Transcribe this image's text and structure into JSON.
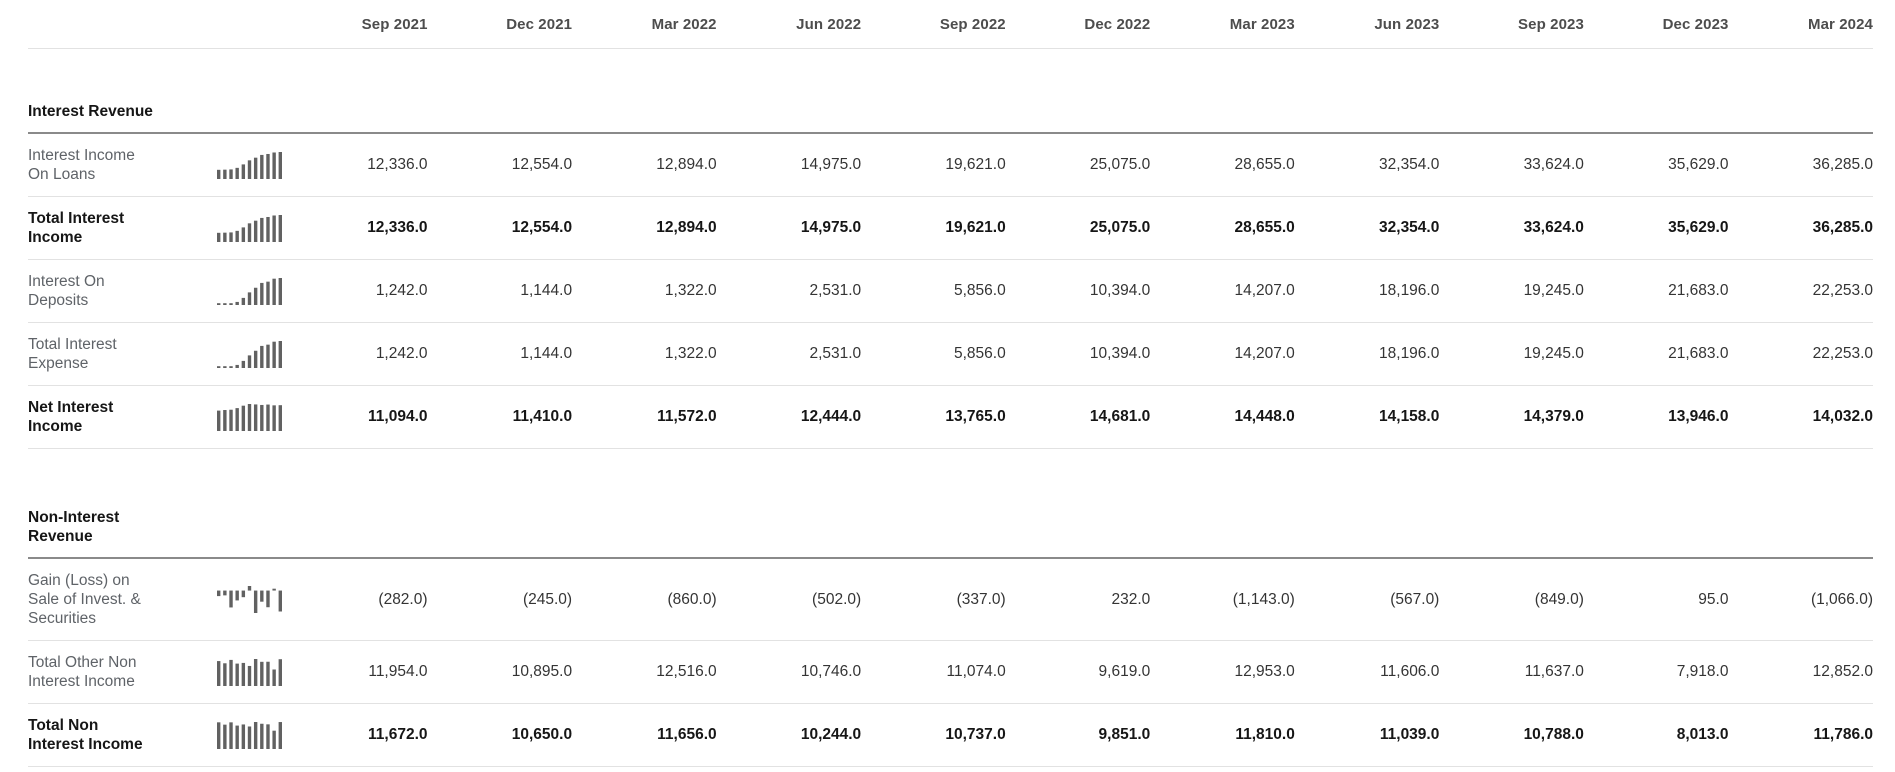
{
  "columns": [
    "Sep 2021",
    "Dec 2021",
    "Mar 2022",
    "Jun 2022",
    "Sep 2022",
    "Dec 2022",
    "Mar 2023",
    "Jun 2023",
    "Sep 2023",
    "Dec 2023",
    "Mar 2024"
  ],
  "sparkline_bar_color": "#616161",
  "sections": [
    {
      "title_lines": [
        "Interest Revenue"
      ],
      "rows": [
        {
          "label_lines": [
            "Interest Income",
            "On Loans"
          ],
          "bold": false,
          "values": [
            "12,336.0",
            "12,554.0",
            "12,894.0",
            "14,975.0",
            "19,621.0",
            "25,075.0",
            "28,655.0",
            "32,354.0",
            "33,624.0",
            "35,629.0",
            "36,285.0"
          ],
          "sparkline": [
            12336,
            12554,
            12894,
            14975,
            19621,
            25075,
            28655,
            32354,
            33624,
            35629,
            36285
          ]
        },
        {
          "label_lines": [
            "Total Interest",
            "Income"
          ],
          "bold": true,
          "values": [
            "12,336.0",
            "12,554.0",
            "12,894.0",
            "14,975.0",
            "19,621.0",
            "25,075.0",
            "28,655.0",
            "32,354.0",
            "33,624.0",
            "35,629.0",
            "36,285.0"
          ],
          "sparkline": [
            12336,
            12554,
            12894,
            14975,
            19621,
            25075,
            28655,
            32354,
            33624,
            35629,
            36285
          ]
        },
        {
          "label_lines": [
            "Interest On",
            "Deposits"
          ],
          "bold": false,
          "values": [
            "1,242.0",
            "1,144.0",
            "1,322.0",
            "2,531.0",
            "5,856.0",
            "10,394.0",
            "14,207.0",
            "18,196.0",
            "19,245.0",
            "21,683.0",
            "22,253.0"
          ],
          "sparkline": [
            1242,
            1144,
            1322,
            2531,
            5856,
            10394,
            14207,
            18196,
            19245,
            21683,
            22253
          ]
        },
        {
          "label_lines": [
            "Total Interest",
            "Expense"
          ],
          "bold": false,
          "values": [
            "1,242.0",
            "1,144.0",
            "1,322.0",
            "2,531.0",
            "5,856.0",
            "10,394.0",
            "14,207.0",
            "18,196.0",
            "19,245.0",
            "21,683.0",
            "22,253.0"
          ],
          "sparkline": [
            1242,
            1144,
            1322,
            2531,
            5856,
            10394,
            14207,
            18196,
            19245,
            21683,
            22253
          ]
        },
        {
          "label_lines": [
            "Net Interest",
            "Income"
          ],
          "bold": true,
          "values": [
            "11,094.0",
            "11,410.0",
            "11,572.0",
            "12,444.0",
            "13,765.0",
            "14,681.0",
            "14,448.0",
            "14,158.0",
            "14,379.0",
            "13,946.0",
            "14,032.0"
          ],
          "sparkline": [
            11094,
            11410,
            11572,
            12444,
            13765,
            14681,
            14448,
            14158,
            14379,
            13946,
            14032
          ]
        }
      ]
    },
    {
      "title_lines": [
        "Non-Interest",
        "Revenue"
      ],
      "rows": [
        {
          "label_lines": [
            "Gain (Loss) on",
            "Sale of Invest. &",
            "Securities"
          ],
          "bold": false,
          "values": [
            "(282.0)",
            "(245.0)",
            "(860.0)",
            "(502.0)",
            "(337.0)",
            "232.0",
            "(1,143.0)",
            "(567.0)",
            "(849.0)",
            "95.0",
            "(1,066.0)"
          ],
          "sparkline": [
            -282,
            -245,
            -860,
            -502,
            -337,
            232,
            -1143,
            -567,
            -849,
            95,
            -1066
          ]
        },
        {
          "label_lines": [
            "Total Other Non",
            "Interest Income"
          ],
          "bold": false,
          "values": [
            "11,954.0",
            "10,895.0",
            "12,516.0",
            "10,746.0",
            "11,074.0",
            "9,619.0",
            "12,953.0",
            "11,606.0",
            "11,637.0",
            "7,918.0",
            "12,852.0"
          ],
          "sparkline": [
            11954,
            10895,
            12516,
            10746,
            11074,
            9619,
            12953,
            11606,
            11637,
            7918,
            12852
          ]
        },
        {
          "label_lines": [
            "Total Non",
            "Interest Income"
          ],
          "bold": true,
          "values": [
            "11,672.0",
            "10,650.0",
            "11,656.0",
            "10,244.0",
            "10,737.0",
            "9,851.0",
            "11,810.0",
            "11,039.0",
            "10,788.0",
            "8,013.0",
            "11,786.0"
          ],
          "sparkline": [
            11672,
            10650,
            11656,
            10244,
            10737,
            9851,
            11810,
            11039,
            10788,
            8013,
            11786
          ]
        }
      ]
    }
  ]
}
